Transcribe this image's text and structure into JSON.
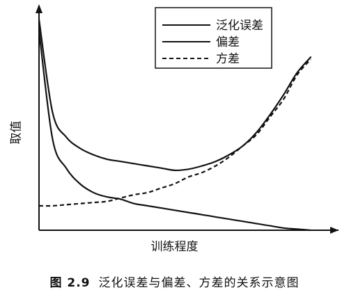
{
  "chart_data": {
    "type": "line",
    "title": "",
    "xlabel": "训练程度",
    "ylabel": "取值",
    "x": [
      0,
      0.05,
      0.1,
      0.15,
      0.2,
      0.25,
      0.3,
      0.35,
      0.4,
      0.45,
      0.5,
      0.55,
      0.6,
      0.65,
      0.7,
      0.75,
      0.8,
      0.85,
      0.9,
      0.95,
      1.0
    ],
    "xlim": [
      0,
      1
    ],
    "ylim": [
      0,
      1
    ],
    "grid": false,
    "legend_position": "top-right",
    "series": [
      {
        "name": "泛化误差",
        "style": "solid",
        "values": [
          0.95,
          0.53,
          0.42,
          0.37,
          0.34,
          0.32,
          0.31,
          0.3,
          0.29,
          0.28,
          0.27,
          0.275,
          0.29,
          0.31,
          0.34,
          0.38,
          0.44,
          0.52,
          0.61,
          0.71,
          0.78
        ]
      },
      {
        "name": "偏差",
        "style": "solid",
        "values": [
          0.9,
          0.41,
          0.28,
          0.21,
          0.17,
          0.15,
          0.14,
          0.12,
          0.11,
          0.1,
          0.09,
          0.08,
          0.07,
          0.06,
          0.05,
          0.04,
          0.03,
          0.02,
          0.01,
          0.005,
          0.0
        ]
      },
      {
        "name": "方差",
        "style": "dashed",
        "values": [
          0.11,
          0.11,
          0.115,
          0.12,
          0.125,
          0.13,
          0.145,
          0.16,
          0.17,
          0.19,
          0.21,
          0.24,
          0.26,
          0.29,
          0.33,
          0.38,
          0.43,
          0.51,
          0.59,
          0.7,
          0.77
        ]
      }
    ]
  },
  "caption": {
    "figure": "图 2.9",
    "text": "泛化误差与偏差、方差的关系示意图"
  }
}
